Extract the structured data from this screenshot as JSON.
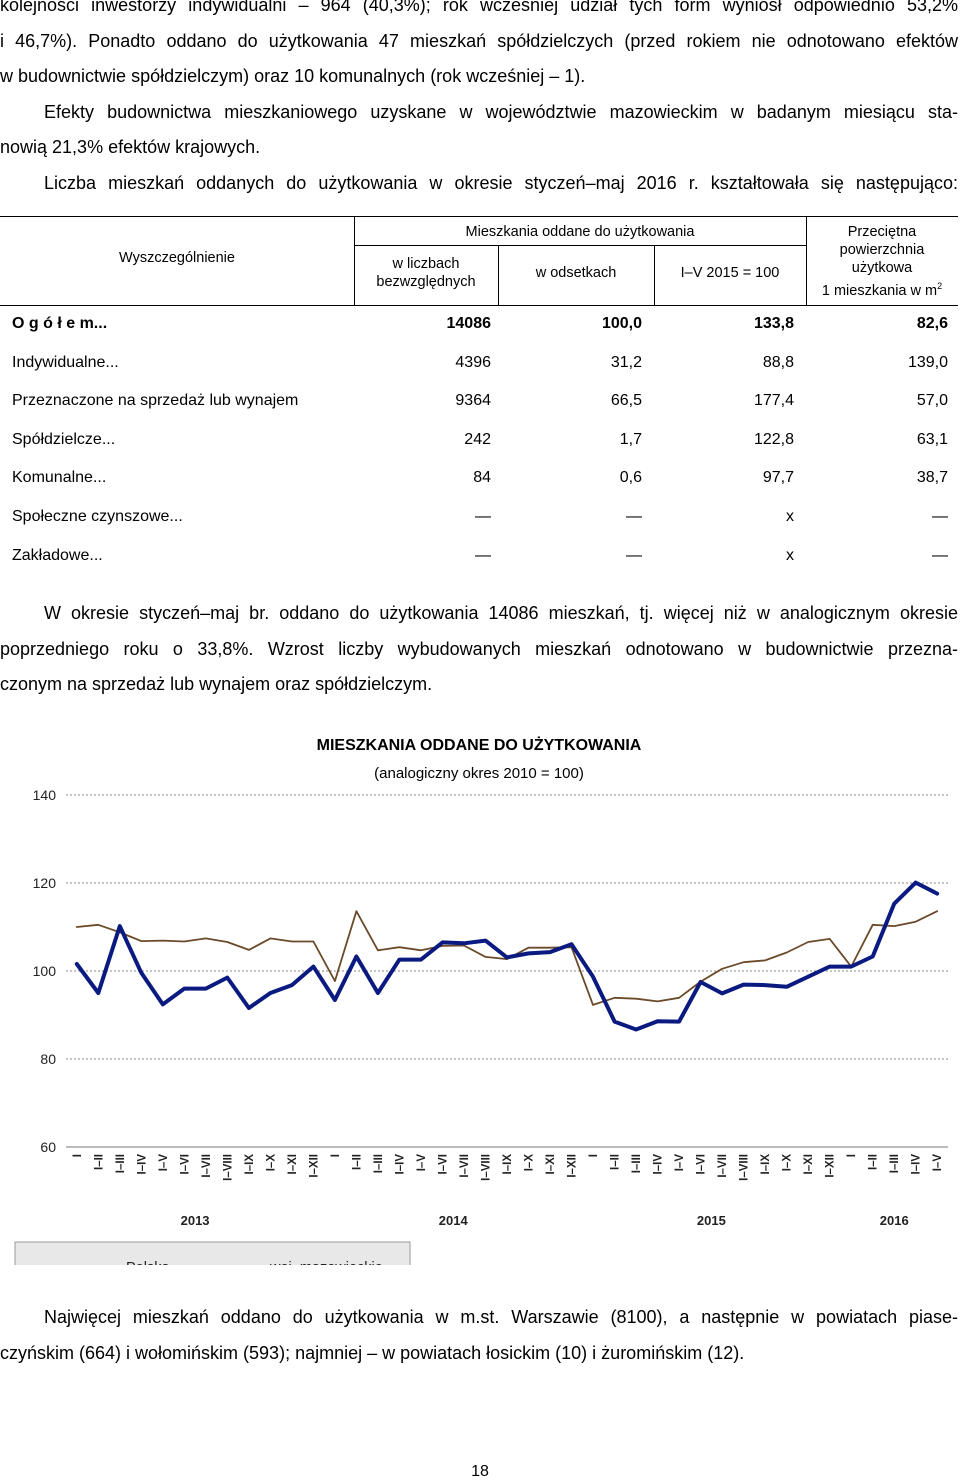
{
  "intro": {
    "line1": "kolejności inwestorzy indywidualni – 964 (40,3%); rok wcześniej udział tych form wyniósł odpowiednio 53,2%",
    "line2": "i 46,7%). Ponadto oddano do użytkowania 47 mieszkań spółdzielczych (przed rokiem nie odnotowano efektów",
    "line3": "w budownictwie spółdzielczym) oraz 10 komunalnych (rok wcześniej – 1).",
    "para2_line1": "Efekty budownictwa mieszkaniowego uzyskane w województwie mazowieckim w badanym miesiącu sta-",
    "para2_line2": "nowią 21,3% efektów krajowych.",
    "para3": "Liczba mieszkań oddanych do użytkowania w okresie styczeń–maj 2016 r. kształtowała się następująco:"
  },
  "table": {
    "headers": {
      "spec": "Wyszczególnienie",
      "group": "Mieszkania oddane do użytkowania",
      "abs_line1": "w liczbach",
      "abs_line2": "bezwzględnych",
      "pct": "w odsetkach",
      "index": "I–V 2015 = 100",
      "area_line1": "Przeciętna",
      "area_line2": "powierzchnia",
      "area_line3": "użytkowa",
      "area_line4": "1 mieszkania w m",
      "area_sup": "2"
    },
    "rows": [
      {
        "label": "O g ó ł e m",
        "dots": "...",
        "abs": "14086",
        "pct": "100,0",
        "index": "133,8",
        "area": "82,6"
      },
      {
        "label": "Indywidualne",
        "dots": "...",
        "abs": "4396",
        "pct": "31,2",
        "index": "88,8",
        "area": "139,0"
      },
      {
        "label": "Przeznaczone na sprzedaż lub wynajem",
        "dots": "",
        "abs": "9364",
        "pct": "66,5",
        "index": "177,4",
        "area": "57,0"
      },
      {
        "label": "Spółdzielcze",
        "dots": "...",
        "abs": "242",
        "pct": "1,7",
        "index": "122,8",
        "area": "63,1"
      },
      {
        "label": "Komunalne",
        "dots": "...",
        "abs": "84",
        "pct": "0,6",
        "index": "97,7",
        "area": "38,7"
      },
      {
        "label": "Społeczne czynszowe",
        "dots": "...",
        "abs": "—",
        "pct": "—",
        "index": "x",
        "area": "—"
      },
      {
        "label": "Zakładowe",
        "dots": "...",
        "abs": "—",
        "pct": "—",
        "index": "x",
        "area": "—"
      }
    ]
  },
  "after": {
    "line1": "W okresie styczeń–maj br. oddano do użytkowania 14086 mieszkań, tj. więcej niż w analogicznym okresie",
    "line2": "poprzedniego roku o 33,8%. Wzrost liczby wybudowanych mieszkań odnotowano w budownictwie przezna-",
    "line3": "czonym na sprzedaż lub wynajem oraz spółdzielczym."
  },
  "chart_data": {
    "type": "line",
    "title": "MIESZKANIA ODDANE DO UŻYTKOWANIA",
    "subtitle": "(analogiczny okres 2010 = 100)",
    "ylim": [
      60,
      140
    ],
    "yticks": [
      60,
      80,
      100,
      120,
      140
    ],
    "grid": true,
    "legend_position": "bottom-left",
    "categories": [
      "I",
      "I–II",
      "I–III",
      "I–IV",
      "I–V",
      "I–VI",
      "I–VII",
      "I–VIII",
      "I–IX",
      "I–X",
      "I–XI",
      "I–XII",
      "I",
      "I–II",
      "I–III",
      "I–IV",
      "I–V",
      "I–VI",
      "I–VII",
      "I–VIII",
      "I–IX",
      "I–X",
      "I–XI",
      "I–XII",
      "I",
      "I–II",
      "I–III",
      "I–IV",
      "I–V",
      "I–VI",
      "I–VII",
      "I–VIII",
      "I–IX",
      "I–X",
      "I–XI",
      "I–XII",
      "I",
      "I–II",
      "I–III",
      "I–IV",
      "I–V"
    ],
    "years": [
      {
        "label": "2013",
        "start": 0,
        "end": 11
      },
      {
        "label": "2014",
        "start": 12,
        "end": 23
      },
      {
        "label": "2015",
        "start": 24,
        "end": 35
      },
      {
        "label": "2016",
        "start": 36,
        "end": 40
      }
    ],
    "series": [
      {
        "name": "Polska",
        "color": "#6b4a2a",
        "width": 1.8,
        "values": [
          110.0,
          110.5,
          108.8,
          106.8,
          106.9,
          106.7,
          107.4,
          106.6,
          104.8,
          107.4,
          106.7,
          106.7,
          97.7,
          113.6,
          104.7,
          105.4,
          104.7,
          105.7,
          105.8,
          103.2,
          102.7,
          105.3,
          105.3,
          105.4,
          92.3,
          93.9,
          93.7,
          93.1,
          93.9,
          97.6,
          100.5,
          102.0,
          102.4,
          104.2,
          106.6,
          107.3,
          101.0,
          110.5,
          110.2,
          111.2,
          113.6
        ]
      },
      {
        "name": "woj. mazowieckie",
        "color": "#0b1a80",
        "width": 4,
        "values": [
          101.6,
          95.0,
          110.2,
          99.6,
          92.4,
          96.0,
          96.0,
          98.5,
          91.6,
          95.0,
          96.8,
          101.0,
          93.4,
          103.3,
          95.0,
          102.6,
          102.6,
          106.5,
          106.3,
          106.9,
          103.1,
          104.0,
          104.3,
          106.1,
          98.7,
          88.5,
          86.7,
          88.6,
          88.5,
          97.5,
          94.9,
          96.9,
          96.8,
          96.4,
          98.7,
          101.0,
          101.0,
          103.3,
          115.3,
          120.1,
          117.6
        ]
      }
    ]
  },
  "closing": {
    "line1": "Najwięcej mieszkań oddano do użytkowania w m.st. Warszawie (8100), a następnie w powiatach piase-",
    "line2": "czyńskim (664) i wołomińskim (593); najmniej – w powiatach łosickim (10) i żuromińskim (12)."
  },
  "page_number": "18"
}
